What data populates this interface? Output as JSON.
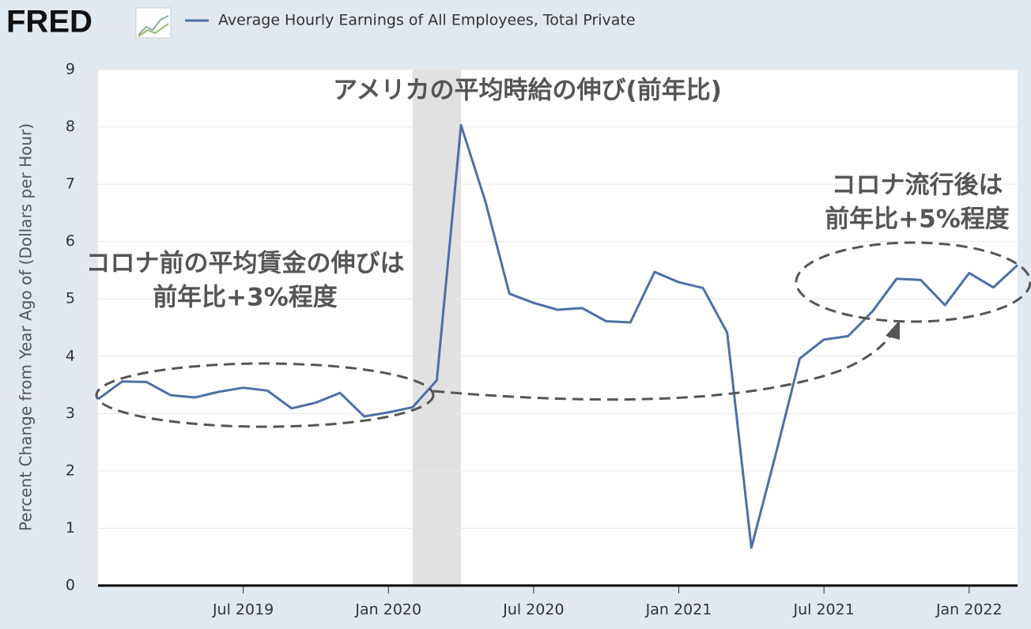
{
  "logo": "FRED",
  "chart_data": {
    "type": "line",
    "title": "アメリカの平均時給の伸び(前年比)",
    "ylabel": "Percent Change from Year Ago of (Dollars per Hour)",
    "x": [
      "2019-01",
      "2019-02",
      "2019-03",
      "2019-04",
      "2019-05",
      "2019-06",
      "2019-07",
      "2019-08",
      "2019-09",
      "2019-10",
      "2019-11",
      "2019-12",
      "2020-01",
      "2020-02",
      "2020-03",
      "2020-04",
      "2020-05",
      "2020-06",
      "2020-07",
      "2020-08",
      "2020-09",
      "2020-10",
      "2020-11",
      "2020-12",
      "2021-01",
      "2021-02",
      "2021-03",
      "2021-04",
      "2021-05",
      "2021-06",
      "2021-07",
      "2021-08",
      "2021-09",
      "2021-10",
      "2021-11",
      "2021-12",
      "2022-01",
      "2022-02",
      "2022-03"
    ],
    "series": [
      {
        "name": "Average Hourly Earnings of All Employees, Total Private",
        "color": "#4e6fa6",
        "values": [
          3.25,
          3.56,
          3.55,
          3.32,
          3.28,
          3.38,
          3.45,
          3.4,
          3.09,
          3.19,
          3.36,
          2.95,
          3.02,
          3.11,
          3.58,
          8.03,
          6.71,
          5.09,
          4.93,
          4.81,
          4.84,
          4.61,
          4.59,
          5.47,
          5.29,
          5.19,
          4.41,
          0.66,
          2.28,
          3.96,
          4.29,
          4.35,
          4.78,
          5.35,
          5.33,
          4.89,
          5.45,
          5.2,
          5.59
        ]
      }
    ],
    "xlim": [
      "2019-01",
      "2022-03"
    ],
    "xticks": [
      {
        "value": "2019-07",
        "label": "Jul 2019"
      },
      {
        "value": "2020-01",
        "label": "Jan 2020"
      },
      {
        "value": "2020-07",
        "label": "Jul 2020"
      },
      {
        "value": "2021-01",
        "label": "Jan 2021"
      },
      {
        "value": "2021-07",
        "label": "Jul 2021"
      },
      {
        "value": "2022-01",
        "label": "Jan 2022"
      }
    ],
    "ylim": [
      0,
      9
    ],
    "yticks": [
      0,
      1,
      2,
      3,
      4,
      5,
      6,
      7,
      8,
      9
    ],
    "grid": true,
    "recession": [
      "2020-02",
      "2020-04"
    ],
    "annotations": [
      {
        "lines": [
          "コロナ前の平均賃金の伸びは",
          "前年比+3%程度"
        ]
      },
      {
        "lines": [
          "コロナ流行後は",
          "前年比+5%程度"
        ]
      }
    ]
  }
}
